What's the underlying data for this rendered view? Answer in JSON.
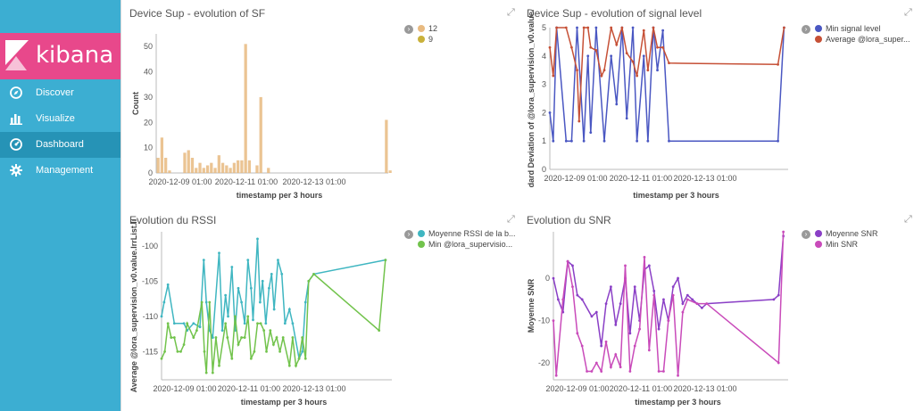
{
  "app": {
    "name": "kibana",
    "nav": [
      {
        "label": "Discover",
        "icon": "compass-icon"
      },
      {
        "label": "Visualize",
        "icon": "bar-chart-icon"
      },
      {
        "label": "Dashboard",
        "icon": "dashboard-icon",
        "active": true
      },
      {
        "label": "Management",
        "icon": "gear-icon"
      }
    ],
    "colors": {
      "sidebar": "#3caed2",
      "logo": "#e8488b",
      "active": "#2693b6"
    }
  },
  "panels": [
    {
      "title": "Device Sup - evolution of SF"
    },
    {
      "title": "Device Sup - evolution of signal level"
    },
    {
      "title": "Evolution du RSSI"
    },
    {
      "title": "Evolution du SNR"
    }
  ],
  "chart_data": [
    {
      "type": "bar",
      "title": "Device Sup - evolution of SF",
      "xlabel": "timestamp per 3 hours",
      "ylabel": "Count",
      "ylim": [
        0,
        55
      ],
      "yticks": [
        "0",
        "10",
        "20",
        "30",
        "40",
        "50"
      ],
      "xtick_labels": [
        "2020-12-09 01:00",
        "2020-12-11 01:00",
        "2020-12-13 01:00"
      ],
      "series": [
        {
          "name": "12",
          "color": "#e8ba80",
          "values": [
            6,
            14,
            6,
            1,
            0,
            0,
            0,
            8,
            9,
            6,
            2,
            4,
            2,
            3,
            4,
            2,
            7,
            4,
            3,
            2,
            4,
            5,
            5,
            51,
            5,
            0,
            3,
            30,
            0,
            2,
            0,
            0,
            0,
            0,
            0,
            0,
            0,
            0,
            0,
            0,
            0,
            0,
            0,
            0,
            0,
            0,
            0,
            0,
            0,
            0,
            0,
            0,
            0,
            0,
            0,
            0,
            0,
            0,
            0,
            0,
            21,
            1
          ]
        },
        {
          "name": "9",
          "color": "#c9b13a",
          "values": []
        }
      ],
      "grid": false,
      "legend": "right"
    },
    {
      "type": "line",
      "title": "Device Sup - evolution of signal level",
      "xlabel": "timestamp per 3 hours",
      "ylabel": "dard Deviation of @lora_supervision_v0.value.",
      "ylim": [
        0,
        5
      ],
      "yticks": [
        "0",
        "1",
        "2",
        "3",
        "4",
        "5"
      ],
      "xtick_labels": [
        "2020-12-09 01:00",
        "2020-12-11 01:00",
        "2020-12-13 01:00"
      ],
      "series": [
        {
          "name": "Min signal level",
          "color": "#4a57c2",
          "points": [
            [
              0,
              2
            ],
            [
              0.5,
              1
            ],
            [
              1,
              5
            ],
            [
              2.4,
              1
            ],
            [
              3.2,
              1
            ],
            [
              4,
              5
            ],
            [
              5,
              1
            ],
            [
              5.6,
              4
            ],
            [
              6,
              1.3
            ],
            [
              6.8,
              5
            ],
            [
              8,
              1
            ],
            [
              9,
              4
            ],
            [
              9.8,
              2.3
            ],
            [
              10.6,
              5
            ],
            [
              11.3,
              1.8
            ],
            [
              12.2,
              5
            ],
            [
              12.8,
              1
            ],
            [
              13.8,
              4
            ],
            [
              14.4,
              1
            ],
            [
              15.2,
              5
            ],
            [
              15.8,
              3.5
            ],
            [
              16.6,
              4.9
            ],
            [
              17.5,
              1
            ],
            [
              33.5,
              1
            ],
            [
              34.4,
              5
            ]
          ]
        },
        {
          "name": "Average @lora_super...",
          "color": "#c65036",
          "points": [
            [
              0,
              4.3
            ],
            [
              0.5,
              3.3
            ],
            [
              1,
              5
            ],
            [
              2.4,
              5
            ],
            [
              3.2,
              4.3
            ],
            [
              4,
              3.5
            ],
            [
              4.3,
              1.7
            ],
            [
              5,
              5
            ],
            [
              5.6,
              5
            ],
            [
              6,
              4.3
            ],
            [
              6.8,
              4.2
            ],
            [
              7.6,
              3.3
            ],
            [
              8,
              3.5
            ],
            [
              9,
              5
            ],
            [
              9.8,
              4.4
            ],
            [
              10.6,
              5
            ],
            [
              11.3,
              4.1
            ],
            [
              12.2,
              3.8
            ],
            [
              12.8,
              3.3
            ],
            [
              13.8,
              4.9
            ],
            [
              14.4,
              3.5
            ],
            [
              15.2,
              5
            ],
            [
              15.8,
              4.3
            ],
            [
              16.6,
              4.3
            ],
            [
              17.5,
              3.75
            ],
            [
              33.5,
              3.7
            ],
            [
              34.4,
              5
            ]
          ]
        }
      ],
      "grid": false,
      "legend": "right"
    },
    {
      "type": "line",
      "title": "Evolution du RSSI",
      "xlabel": "timestamp per 3 hours",
      "ylabel": "Average @lora_supervision_v0.value.lrrList.lı",
      "ylim": [
        -119,
        -98
      ],
      "yticks": [
        "-115",
        "-110",
        "-105",
        "-100"
      ],
      "xtick_labels": [
        "2020-12-09 01:00",
        "2020-12-11 01:00",
        "2020-12-13 01:00"
      ],
      "series": [
        {
          "name": "Moyenne RSSI de la b...",
          "color": "#3fb6c1",
          "points": [
            [
              0,
              -110
            ],
            [
              0.4,
              -108
            ],
            [
              1,
              -105.5
            ],
            [
              2,
              -111
            ],
            [
              3.5,
              -111
            ],
            [
              4,
              -112
            ],
            [
              5,
              -111
            ],
            [
              6,
              -111.5
            ],
            [
              6.6,
              -102
            ],
            [
              7,
              -108
            ],
            [
              7.5,
              -112
            ],
            [
              8,
              -113
            ],
            [
              9,
              -101
            ],
            [
              9.5,
              -112
            ],
            [
              10,
              -107
            ],
            [
              10.4,
              -110
            ],
            [
              11,
              -103
            ],
            [
              11.5,
              -112
            ],
            [
              12,
              -106
            ],
            [
              12.5,
              -108
            ],
            [
              13,
              -111
            ],
            [
              13.5,
              -102
            ],
            [
              14,
              -106
            ],
            [
              14.3,
              -110.5
            ],
            [
              15,
              -99
            ],
            [
              15.4,
              -108
            ],
            [
              15.8,
              -105
            ],
            [
              16.3,
              -111
            ],
            [
              16.8,
              -106
            ],
            [
              17.2,
              -104
            ],
            [
              17.6,
              -109
            ],
            [
              18.2,
              -102
            ],
            [
              18.8,
              -104
            ],
            [
              19.3,
              -111
            ],
            [
              20,
              -109
            ],
            [
              20.5,
              -111
            ],
            [
              21.5,
              -116
            ],
            [
              22,
              -115
            ],
            [
              22.5,
              -108
            ],
            [
              23,
              -105
            ],
            [
              23.8,
              -104
            ],
            [
              35,
              -102
            ]
          ]
        },
        {
          "name": "Min @lora_supervisio...",
          "color": "#72c34c",
          "points": [
            [
              0,
              -116
            ],
            [
              0.5,
              -115
            ],
            [
              1,
              -111
            ],
            [
              1.5,
              -113
            ],
            [
              2,
              -113
            ],
            [
              2.5,
              -115
            ],
            [
              3,
              -115
            ],
            [
              3.5,
              -114
            ],
            [
              4,
              -111
            ],
            [
              5,
              -113
            ],
            [
              5.5,
              -112
            ],
            [
              6.3,
              -108
            ],
            [
              6.7,
              -115
            ],
            [
              7,
              -118
            ],
            [
              7.5,
              -108
            ],
            [
              8,
              -118
            ],
            [
              8.5,
              -113
            ],
            [
              9,
              -117
            ],
            [
              10,
              -111
            ],
            [
              10.3,
              -113
            ],
            [
              11,
              -116
            ],
            [
              11.5,
              -110
            ],
            [
              12,
              -114
            ],
            [
              12.5,
              -113
            ],
            [
              13,
              -113
            ],
            [
              13.5,
              -110
            ],
            [
              14,
              -116
            ],
            [
              14.5,
              -115
            ],
            [
              15,
              -111
            ],
            [
              15.5,
              -111
            ],
            [
              16,
              -112
            ],
            [
              16.4,
              -115
            ],
            [
              17,
              -112
            ],
            [
              17.5,
              -114
            ],
            [
              18,
              -113
            ],
            [
              18.5,
              -115
            ],
            [
              19,
              -113
            ],
            [
              20,
              -117
            ],
            [
              20.5,
              -113
            ],
            [
              21,
              -117
            ],
            [
              21.5,
              -116
            ],
            [
              22,
              -113
            ],
            [
              22.5,
              -116
            ],
            [
              23,
              -105
            ],
            [
              23.8,
              -104
            ],
            [
              34,
              -112
            ],
            [
              35,
              -102
            ]
          ]
        }
      ],
      "grid": false,
      "legend": "right"
    },
    {
      "type": "line",
      "title": "Evolution du SNR",
      "xlabel": "timestamp per 3 hours",
      "ylabel": "Moyenne SNR",
      "ylim": [
        -24,
        11
      ],
      "yticks": [
        "-20",
        "-10",
        "0"
      ],
      "xtick_labels": [
        "2020-12-09 01:00",
        "2020-12-11 01:00",
        "2020-12-13 01:00"
      ],
      "series": [
        {
          "name": "Moyenne SNR",
          "color": "#8a3fc6",
          "points": [
            [
              0,
              0
            ],
            [
              0.5,
              -5
            ],
            [
              1,
              -8
            ],
            [
              1.5,
              4
            ],
            [
              2,
              3
            ],
            [
              2.5,
              -4
            ],
            [
              3,
              -5
            ],
            [
              4,
              -9
            ],
            [
              4.5,
              -8
            ],
            [
              5,
              -16
            ],
            [
              5.5,
              -6
            ],
            [
              6,
              -2
            ],
            [
              6.5,
              -11
            ],
            [
              7,
              -6
            ],
            [
              7.5,
              0
            ],
            [
              8,
              -13
            ],
            [
              8.5,
              -2
            ],
            [
              9,
              -10
            ],
            [
              9.5,
              2
            ],
            [
              10,
              3
            ],
            [
              10.5,
              -3
            ],
            [
              11,
              -12
            ],
            [
              11.5,
              -5
            ],
            [
              12,
              -10
            ],
            [
              12.5,
              -2
            ],
            [
              13,
              0
            ],
            [
              13.5,
              -6
            ],
            [
              14,
              -4
            ],
            [
              14.5,
              -5
            ],
            [
              15,
              -6
            ],
            [
              15.5,
              -7
            ],
            [
              16,
              -6
            ],
            [
              23,
              -5
            ],
            [
              23.5,
              -4
            ],
            [
              24,
              10
            ]
          ]
        },
        {
          "name": "Min SNR",
          "color": "#c94bba",
          "points": [
            [
              0,
              -10
            ],
            [
              0.3,
              -23
            ],
            [
              1,
              -5
            ],
            [
              1.5,
              4
            ],
            [
              2,
              -2
            ],
            [
              2.5,
              -13
            ],
            [
              3,
              -16
            ],
            [
              3.5,
              -22
            ],
            [
              4,
              -22
            ],
            [
              4.5,
              -20
            ],
            [
              5,
              -22
            ],
            [
              5.5,
              -15
            ],
            [
              6,
              -21
            ],
            [
              6.5,
              -18
            ],
            [
              7,
              -21
            ],
            [
              7.5,
              3
            ],
            [
              8,
              -22
            ],
            [
              8.5,
              -16
            ],
            [
              9,
              -12
            ],
            [
              9.5,
              5
            ],
            [
              10,
              -17
            ],
            [
              10.5,
              -4
            ],
            [
              11,
              -22
            ],
            [
              11.5,
              -22
            ],
            [
              12,
              -10
            ],
            [
              12.5,
              -4
            ],
            [
              13,
              -23
            ],
            [
              13.5,
              -8
            ],
            [
              14,
              -5
            ],
            [
              15,
              -6
            ],
            [
              16,
              -6
            ],
            [
              23.5,
              -20
            ],
            [
              24,
              11
            ]
          ]
        }
      ],
      "grid": false,
      "legend": "right"
    }
  ]
}
